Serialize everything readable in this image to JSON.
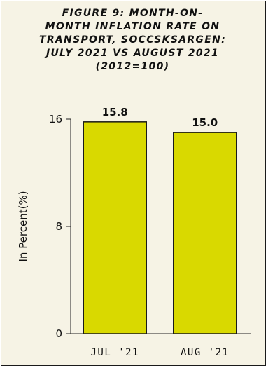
{
  "chart_data": {
    "type": "bar",
    "title": "FIGURE 9: MONTH-ON-MONTH INFLATION RATE ON TRANSPORT, SOCCSKSARGEN: JULY 2021 VS AUGUST 2021 (2012=100)",
    "title_lines": [
      "FIGURE 9: MONTH-ON-",
      "MONTH INFLATION RATE ON",
      "TRANSPORT, SOCCSKSARGEN:",
      "JULY 2021 VS AUGUST 2021",
      "(2012=100)"
    ],
    "categories": [
      "JUL '21",
      "AUG '21"
    ],
    "values": [
      15.8,
      15.0
    ],
    "data_labels": [
      "15.8",
      "15.0"
    ],
    "ylabel": "In Percent(%)",
    "xlabel": "",
    "ylim": [
      0,
      16
    ],
    "yticks": [
      0,
      8,
      16
    ],
    "ytick_labels": [
      "0",
      "8",
      "16"
    ],
    "grid": false,
    "legend": "none",
    "colors": {
      "bar_fill": "#d9d900",
      "bar_stroke": "#1a1a1a",
      "background": "#f6f3e5",
      "axis": "#222222"
    }
  }
}
